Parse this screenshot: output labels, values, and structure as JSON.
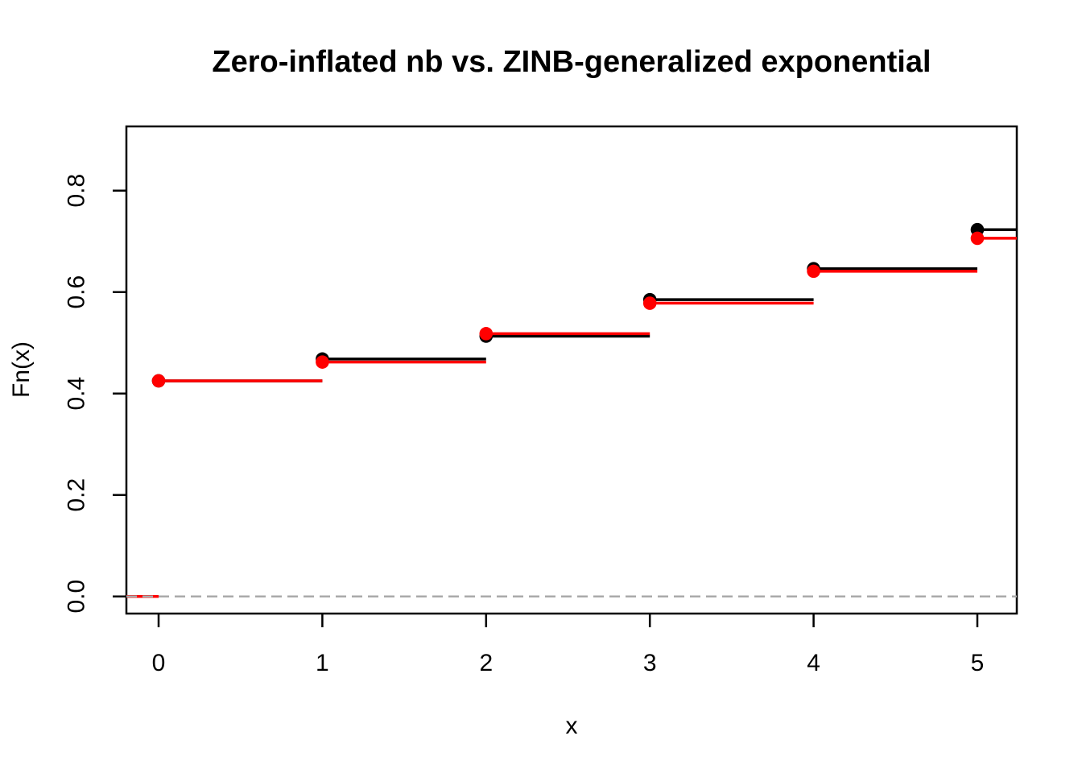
{
  "chart_data": {
    "type": "line",
    "subtype": "ecdf-step",
    "title": "Zero-inflated nb vs. ZINB-generalized exponential",
    "xlabel": "x",
    "ylabel": "Fn(x)",
    "x": [
      0,
      1,
      2,
      3,
      4,
      5
    ],
    "series": [
      {
        "name": "Zero-inflated nb",
        "color": "#000000",
        "values": [
          0.425,
          0.468,
          0.513,
          0.585,
          0.646,
          0.723
        ]
      },
      {
        "name": "ZINB-generalized exponential",
        "color": "#ff0000",
        "values": [
          0.425,
          0.462,
          0.518,
          0.578,
          0.641,
          0.706
        ]
      }
    ],
    "x_ticks": [
      0,
      1,
      2,
      3,
      4,
      5
    ],
    "x_tick_labels": [
      "0",
      "1",
      "2",
      "3",
      "4",
      "5"
    ],
    "y_ticks": [
      0.0,
      0.2,
      0.4,
      0.6,
      0.8
    ],
    "y_tick_labels": [
      "0.0",
      "0.2",
      "0.4",
      "0.6",
      "0.8"
    ],
    "xlim": [
      -0.197,
      5.241
    ],
    "ylim": [
      -0.034,
      0.927
    ],
    "grid": false,
    "legend": "none",
    "point_style": "filled-circle",
    "reference_line": {
      "y": 0,
      "style": "dashed",
      "color": "#aaaaaa"
    }
  }
}
